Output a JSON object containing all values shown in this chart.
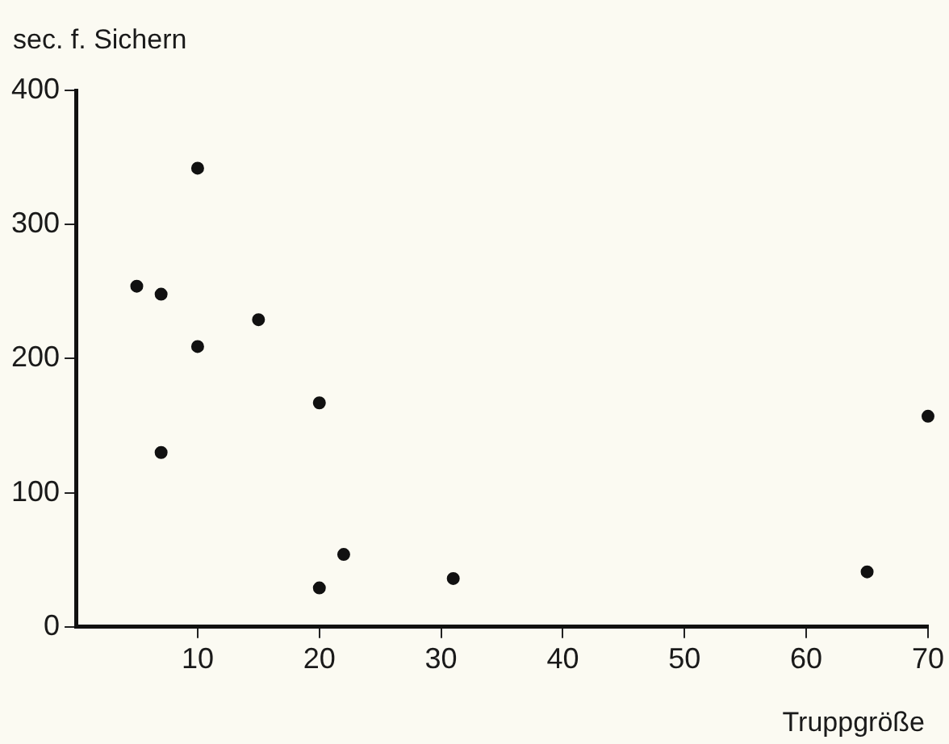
{
  "chart_data": {
    "type": "scatter",
    "xlabel": "Truppgröße",
    "ylabel": "sec. f. Sichern",
    "x": [
      5,
      7,
      10,
      10,
      7,
      15,
      20,
      22,
      20,
      31,
      65,
      70
    ],
    "values": [
      254,
      248,
      342,
      209,
      130,
      229,
      167,
      54,
      29,
      36,
      41,
      157
    ],
    "color": "#111111",
    "marker": "circle",
    "grid": false,
    "legend": false,
    "xlim": [
      0,
      70
    ],
    "xticks": [
      10,
      20,
      30,
      40,
      50,
      60,
      70
    ],
    "ylim": [
      0,
      400
    ],
    "yticks": [
      0,
      100,
      200,
      300,
      400
    ]
  }
}
